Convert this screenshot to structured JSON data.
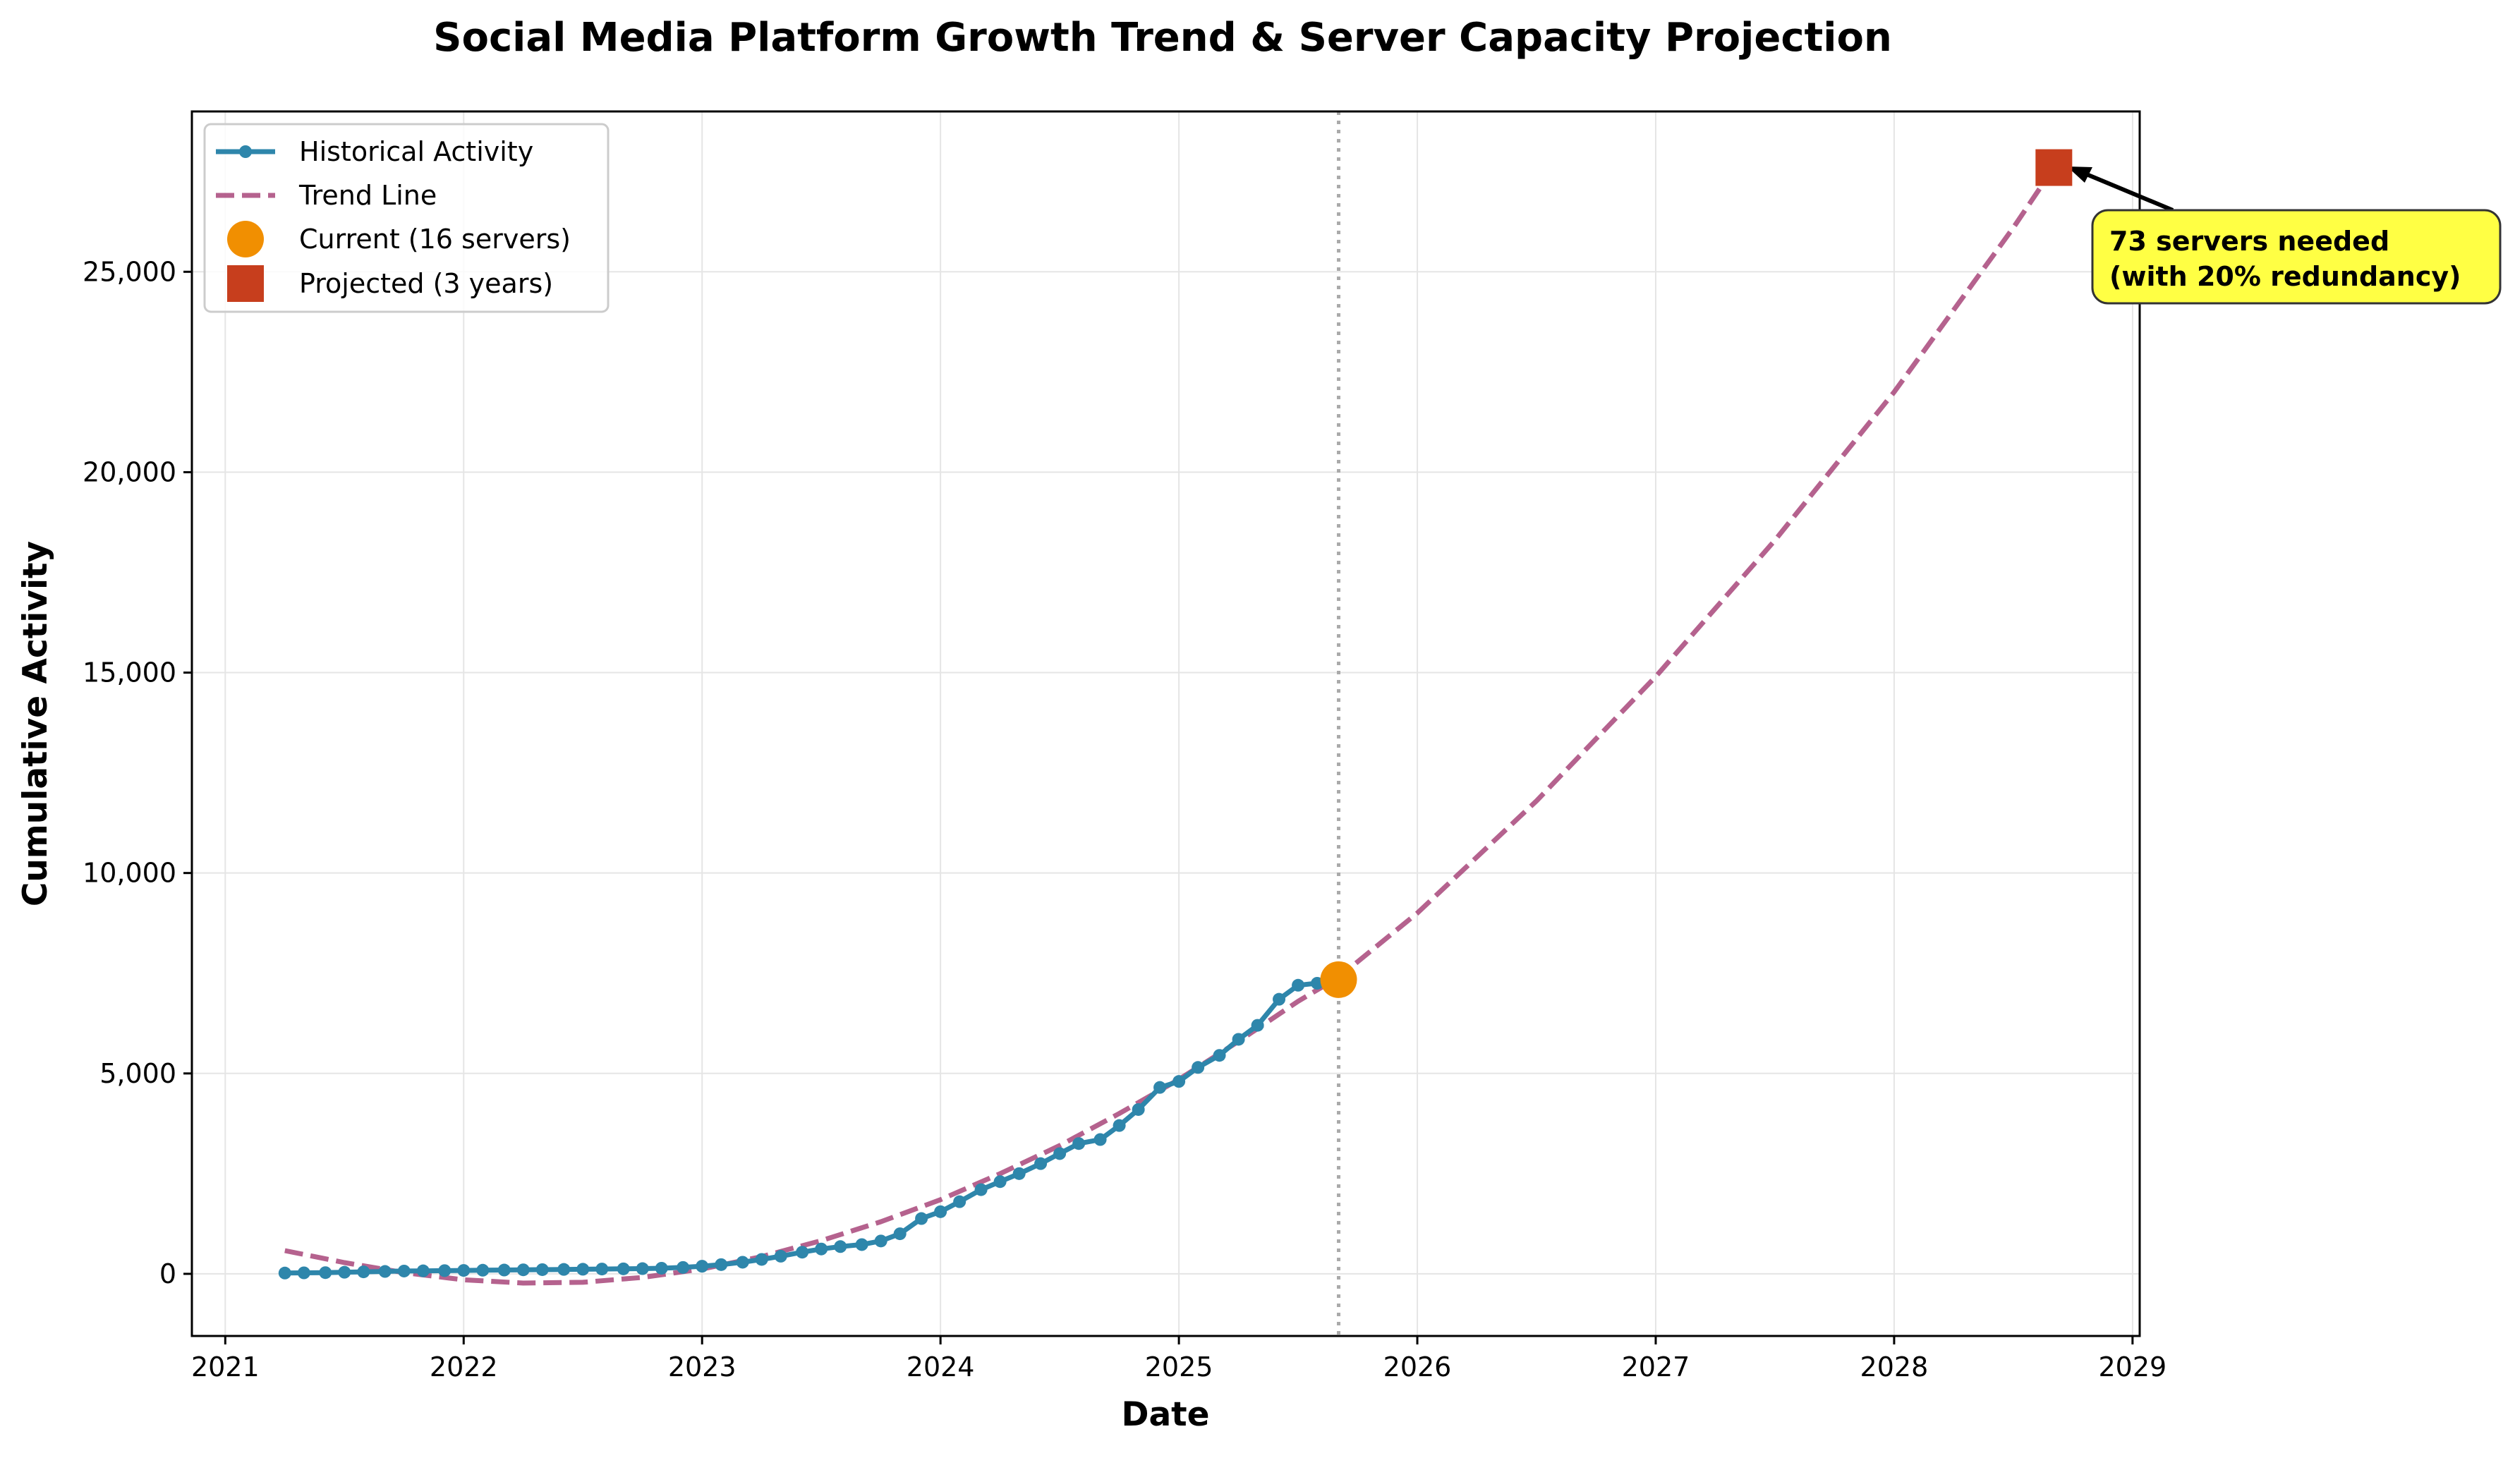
{
  "chart_data": {
    "type": "line",
    "title": "Social Media Platform Growth Trend & Server Capacity Projection",
    "xlabel": "Date",
    "ylabel": "Cumulative Activity",
    "xlim": [
      2020.86,
      2029.03
    ],
    "ylim": [
      -1550,
      29000
    ],
    "x_ticks": [
      2021,
      2022,
      2023,
      2024,
      2025,
      2026,
      2027,
      2028,
      2029
    ],
    "x_tick_labels": [
      "2021",
      "2022",
      "2023",
      "2024",
      "2025",
      "2026",
      "2027",
      "2028",
      "2029"
    ],
    "y_ticks": [
      0,
      5000,
      10000,
      15000,
      20000,
      25000
    ],
    "y_tick_labels": [
      "0",
      "5,000",
      "10,000",
      "15,000",
      "20,000",
      "25,000"
    ],
    "grid": true,
    "legend": {
      "position": "top-left",
      "entries": [
        "Historical Activity",
        "Trend Line",
        "Current (16 servers)",
        "Projected (3 years)"
      ]
    },
    "colors": {
      "historical": "#2e86ab",
      "trend": "#a23b72",
      "current": "#f18f01",
      "projected": "#c73e1d",
      "annotation_box": "#ffff44",
      "reference_line": "#aaaaaa"
    },
    "series": [
      {
        "name": "Historical Activity",
        "style": "line-with-markers",
        "x": [
          2021.25,
          2021.33,
          2021.42,
          2021.5,
          2021.58,
          2021.67,
          2021.75,
          2021.83,
          2021.92,
          2022.0,
          2022.08,
          2022.17,
          2022.25,
          2022.33,
          2022.42,
          2022.5,
          2022.58,
          2022.67,
          2022.75,
          2022.83,
          2022.92,
          2023.0,
          2023.08,
          2023.17,
          2023.25,
          2023.33,
          2023.42,
          2023.5,
          2023.58,
          2023.67,
          2023.75,
          2023.83,
          2023.92,
          2024.0,
          2024.08,
          2024.17,
          2024.25,
          2024.33,
          2024.42,
          2024.5,
          2024.58,
          2024.67,
          2024.75,
          2024.83,
          2024.92,
          2025.0,
          2025.08,
          2025.17,
          2025.25,
          2025.33,
          2025.42,
          2025.5,
          2025.58,
          2025.67
        ],
        "y": [
          20,
          25,
          30,
          40,
          50,
          60,
          70,
          75,
          80,
          85,
          90,
          95,
          100,
          105,
          110,
          115,
          120,
          125,
          130,
          140,
          160,
          190,
          230,
          290,
          360,
          440,
          540,
          620,
          680,
          730,
          820,
          1000,
          1380,
          1550,
          1800,
          2100,
          2300,
          2500,
          2750,
          3000,
          3250,
          3350,
          3700,
          4100,
          4650,
          4800,
          5150,
          5450,
          5850,
          6200,
          6850,
          7200,
          7250,
          7340
        ]
      },
      {
        "name": "Trend Line",
        "style": "dashed",
        "x": [
          2021.25,
          2021.5,
          2021.75,
          2022.0,
          2022.25,
          2022.5,
          2022.75,
          2023.0,
          2023.25,
          2023.5,
          2023.75,
          2024.0,
          2024.25,
          2024.5,
          2024.75,
          2025.0,
          2025.25,
          2025.5,
          2025.67,
          2026.0,
          2026.5,
          2027.0,
          2027.5,
          2028.0,
          2028.5,
          2028.67
        ],
        "y": [
          580,
          280,
          30,
          -150,
          -230,
          -210,
          -90,
          120,
          430,
          830,
          1300,
          1850,
          2500,
          3200,
          4000,
          4850,
          5800,
          6800,
          7400,
          9000,
          11800,
          14900,
          18300,
          22000,
          26100,
          27600
        ]
      }
    ],
    "points": [
      {
        "name": "Current (16 servers)",
        "x": 2025.67,
        "y": 7340,
        "marker": "circle"
      },
      {
        "name": "Projected (3 years)",
        "x": 2028.67,
        "y": 27600,
        "marker": "square"
      }
    ],
    "reference_line": {
      "x": 2025.67,
      "style": "dotted"
    },
    "annotation": {
      "lines": [
        "73 servers needed",
        "(with 20% redundancy)"
      ],
      "target": "Projected (3 years)"
    }
  }
}
